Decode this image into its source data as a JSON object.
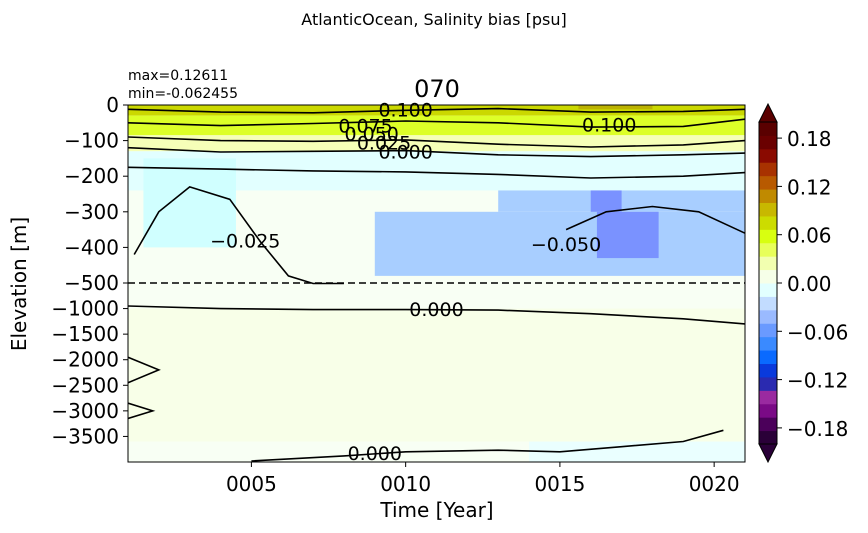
{
  "figure": {
    "suptitle": "AtlanticOcean, Salinity bias [psu]",
    "panel_title": "070",
    "stats": {
      "max_label": "max=0.12611",
      "min_label": "min=-0.062455"
    }
  },
  "chart_data": {
    "type": "heatmap",
    "title": "070",
    "xlabel": "Time [Year]",
    "ylabel": "Elevation [m]",
    "xlim": [
      1,
      21
    ],
    "x_ticks": [
      {
        "value": 5,
        "label": "0005"
      },
      {
        "value": 10,
        "label": "0010"
      },
      {
        "value": 15,
        "label": "0015"
      },
      {
        "value": 20,
        "label": "0020"
      }
    ],
    "upper_ylim": [
      -500,
      0
    ],
    "lower_ylim": [
      -4000,
      -500
    ],
    "y_ticks_upper": [
      {
        "value": 0,
        "label": "0"
      },
      {
        "value": -100,
        "label": "−100"
      },
      {
        "value": -200,
        "label": "−200"
      },
      {
        "value": -300,
        "label": "−300"
      },
      {
        "value": -400,
        "label": "−400"
      }
    ],
    "y_ticks_lower": [
      {
        "value": -500,
        "label": "−500"
      },
      {
        "value": -1000,
        "label": "−1000"
      },
      {
        "value": -1500,
        "label": "−1500"
      },
      {
        "value": -2000,
        "label": "−2000"
      },
      {
        "value": -2500,
        "label": "−2500"
      },
      {
        "value": -3000,
        "label": "−3000"
      },
      {
        "value": -3500,
        "label": "−3500"
      }
    ],
    "split_depth": -500,
    "max": 0.12611,
    "min": -0.062455,
    "fill_regions": [
      {
        "name": "surface-olive-band",
        "color": "#cbd800",
        "x": [
          1,
          21
        ],
        "y": [
          -30,
          0
        ]
      },
      {
        "name": "surface-dark-patch",
        "color": "#bcb200",
        "x": [
          15.6,
          18
        ],
        "y": [
          -12,
          0
        ]
      },
      {
        "name": "yellow-green-band",
        "color": "#ddff28",
        "x": [
          1,
          21
        ],
        "y": [
          -85,
          -30
        ]
      },
      {
        "name": "light-yellow-band",
        "color": "#f6ffb8",
        "x": [
          1,
          21
        ],
        "y": [
          -130,
          -85
        ]
      },
      {
        "name": "light-cyan-band",
        "color": "#e2ffff",
        "x": [
          1,
          21
        ],
        "y": [
          -240,
          -130
        ]
      },
      {
        "name": "cyan-patch",
        "color": "#d0ffff",
        "x": [
          1.5,
          4.5
        ],
        "y": [
          -400,
          -150
        ]
      },
      {
        "name": "blue-region",
        "color": "#a8ceff",
        "x": [
          9,
          21
        ],
        "y": [
          -480,
          -300
        ]
      },
      {
        "name": "blue-region-upper",
        "color": "#a8ceff",
        "x": [
          13,
          21
        ],
        "y": [
          -300,
          -240
        ]
      },
      {
        "name": "dark-blue-patch",
        "color": "#7a92ff",
        "x": [
          16.2,
          18.2
        ],
        "y": [
          -430,
          -300
        ]
      },
      {
        "name": "dark-blue-patch-2",
        "color": "#7a92ff",
        "x": [
          16,
          17
        ],
        "y": [
          -300,
          -240
        ]
      },
      {
        "name": "deep-light-yellow",
        "color": "#f8ffe8",
        "x": [
          1,
          21
        ],
        "y": [
          -3600,
          -1000
        ]
      },
      {
        "name": "bottom-cyan",
        "color": "#eaffff",
        "x": [
          14,
          21
        ],
        "y": [
          -4000,
          -3600
        ]
      }
    ],
    "contours": [
      {
        "level": 0.1,
        "x": [
          1,
          4,
          7,
          10,
          13,
          16,
          19,
          21
        ],
        "y": [
          -12,
          -20,
          -22,
          -15,
          -10,
          -20,
          -18,
          -12
        ]
      },
      {
        "level": 0.075,
        "x": [
          1,
          4,
          7,
          10,
          13,
          16,
          19,
          21
        ],
        "y": [
          -50,
          -58,
          -52,
          -45,
          -50,
          -62,
          -60,
          -40
        ]
      },
      {
        "level": 0.05,
        "x": [
          1,
          4,
          7,
          10,
          13,
          16,
          19,
          21
        ],
        "y": [
          -90,
          -100,
          -102,
          -98,
          -110,
          -118,
          -112,
          -100
        ]
      },
      {
        "level": 0.025,
        "x": [
          1,
          4,
          7,
          10,
          13,
          16,
          19,
          21
        ],
        "y": [
          -120,
          -132,
          -130,
          -128,
          -140,
          -145,
          -140,
          -135
        ]
      },
      {
        "level": 0.0,
        "x": [
          1,
          4,
          7,
          10,
          13,
          16,
          19,
          21
        ],
        "y": [
          -175,
          -180,
          -185,
          -188,
          -195,
          -205,
          -200,
          -190
        ]
      },
      {
        "level": -0.025,
        "x": [
          1.2,
          2,
          3,
          4.3,
          5.3,
          6.2,
          7,
          8
        ],
        "y": [
          -420,
          -300,
          -230,
          -265,
          -385,
          -480,
          -510,
          -510
        ]
      },
      {
        "level": -0.05,
        "x": [
          15.2,
          16.5,
          18,
          19.5,
          21
        ],
        "y": [
          -350,
          -300,
          -285,
          -300,
          -360
        ]
      },
      {
        "level": 0.0,
        "x": [
          1,
          4,
          7,
          10,
          13,
          16,
          19,
          21
        ],
        "y": [
          -950,
          -1000,
          -1020,
          -1020,
          -1030,
          -1100,
          -1200,
          -1300
        ]
      },
      {
        "level": 0.0,
        "x": [
          1,
          2,
          1
        ],
        "y": [
          -1950,
          -2200,
          -2450
        ]
      },
      {
        "level": 0.0,
        "x": [
          1,
          1.8,
          1
        ],
        "y": [
          -2850,
          -3000,
          -3150
        ]
      },
      {
        "level": 0.0,
        "x": [
          5,
          8,
          10,
          13,
          15,
          17,
          19,
          20.3
        ],
        "y": [
          -3980,
          -3880,
          -3800,
          -3770,
          -3800,
          -3700,
          -3600,
          -3380
        ]
      }
    ],
    "contour_labels": [
      {
        "text": "0.100",
        "x": 10,
        "y": -12
      },
      {
        "text": "0.075",
        "x": 8.7,
        "y": -57
      },
      {
        "text": "0.050",
        "x": 8.9,
        "y": -80
      },
      {
        "text": "0.025",
        "x": 9.3,
        "y": -105
      },
      {
        "text": "0.000",
        "x": 10,
        "y": -130
      },
      {
        "text": "0.100",
        "x": 16.6,
        "y": -55
      },
      {
        "text": "−0.025",
        "x": 4.8,
        "y": -380
      },
      {
        "text": "−0.050",
        "x": 15.2,
        "y": -390
      },
      {
        "text": "0.000",
        "x": 11,
        "y": -1010
      },
      {
        "text": "0.000",
        "x": 9,
        "y": -3820
      }
    ],
    "colorbar": {
      "ticks": [
        {
          "value": 0.18,
          "label": "0.18"
        },
        {
          "value": 0.12,
          "label": "0.12"
        },
        {
          "value": 0.06,
          "label": "0.06"
        },
        {
          "value": 0,
          "label": "0.00"
        },
        {
          "value": -0.06,
          "label": "−0.06"
        },
        {
          "value": -0.12,
          "label": "−0.12"
        },
        {
          "value": -0.18,
          "label": "−0.18"
        }
      ],
      "range": [
        -0.2,
        0.2
      ],
      "colors": [
        "#2a0038",
        "#4b005a",
        "#7a0a86",
        "#9a2aa0",
        "#2a2ab0",
        "#0a3adc",
        "#0a6aff",
        "#3a8aff",
        "#6a9aff",
        "#9abaff",
        "#c2dcff",
        "#e2ffff",
        "#f6ffe8",
        "#f2ffb0",
        "#e8ff5a",
        "#d8ff10",
        "#ccdc00",
        "#c8b800",
        "#c08a00",
        "#b85a00",
        "#a83200",
        "#8a0a00",
        "#6a0000",
        "#5a0000"
      ]
    }
  }
}
